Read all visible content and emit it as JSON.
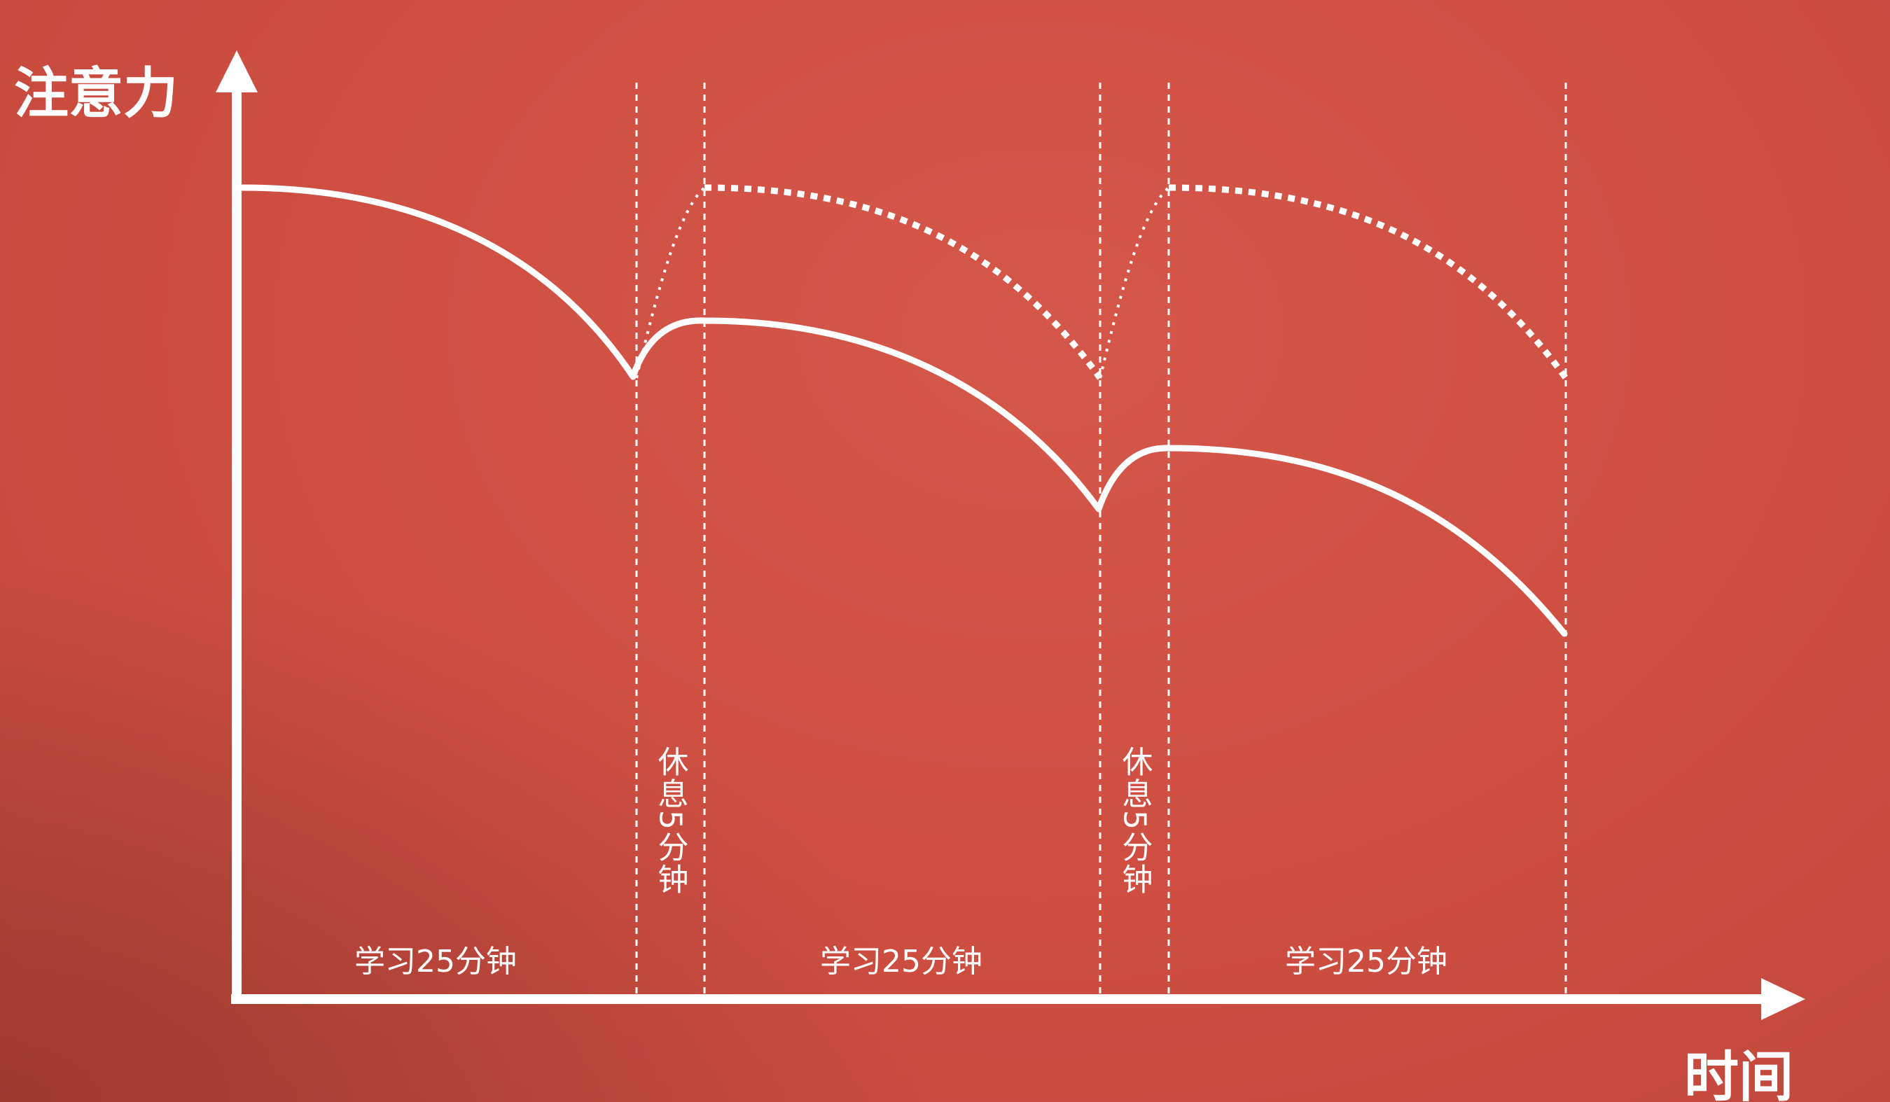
{
  "y_axis_label": "注意力",
  "x_axis_label": "时间",
  "phases": [
    {
      "label": "学习25分钟",
      "kind": "study"
    },
    {
      "label": "休息5分钟",
      "kind": "rest"
    },
    {
      "label": "学习25分钟",
      "kind": "study"
    },
    {
      "label": "休息5分钟",
      "kind": "rest"
    },
    {
      "label": "学习25分钟",
      "kind": "study"
    }
  ],
  "colors": {
    "background": "#cd4e41",
    "foreground": "#ffffff"
  }
}
